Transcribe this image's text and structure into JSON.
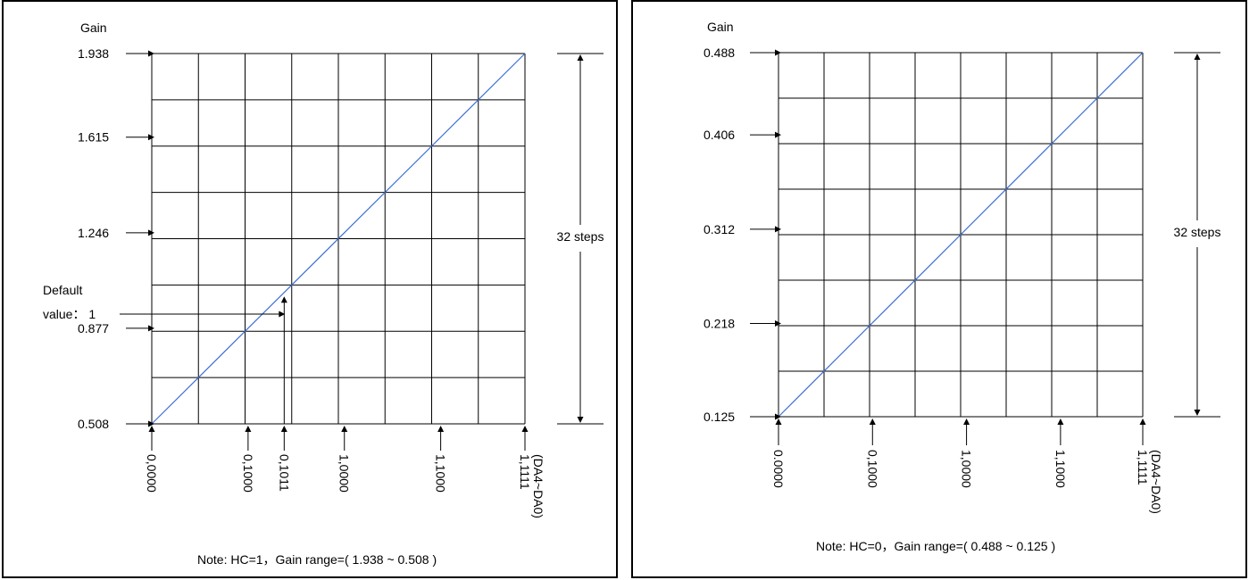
{
  "chart_data": [
    {
      "type": "line",
      "ylabel": "Gain",
      "xlabel": "(DA4~DA0)",
      "x_tick_labels": [
        "0,0000",
        "0,1000",
        "0,1011",
        "1,0000",
        "1,1000",
        "1,1111"
      ],
      "x_tick_steps": [
        0,
        8,
        11,
        16,
        24,
        31
      ],
      "y_tick_labels": [
        "1.938",
        "1.615",
        "1.246",
        "0.877",
        "0.508"
      ],
      "ylim": [
        0.508,
        1.938
      ],
      "xlim": [
        0,
        31
      ],
      "series": [
        {
          "x": [
            0,
            31
          ],
          "y": [
            0.508,
            1.938
          ]
        }
      ],
      "grid": true,
      "steps_label": "32 steps",
      "default_label_line1": "Default",
      "default_label_line2": "value： 1",
      "default_point": {
        "x": 11,
        "y": 1
      },
      "note": "Note: HC=1，Gain range=( 1.938 ~ 0.508 )",
      "line_color": "#3b6fd4"
    },
    {
      "type": "line",
      "ylabel": "Gain",
      "xlabel": "(DA4~DA0)",
      "x_tick_labels": [
        "0.0000",
        "0,1000",
        "1,0000",
        "1,1000",
        "1,1111"
      ],
      "x_tick_steps": [
        0,
        8,
        16,
        24,
        31
      ],
      "y_tick_labels": [
        "0.488",
        "0.406",
        "0.312",
        "0.218",
        "0.125"
      ],
      "ylim": [
        0.125,
        0.488
      ],
      "xlim": [
        0,
        31
      ],
      "series": [
        {
          "x": [
            0,
            31
          ],
          "y": [
            0.125,
            0.488
          ]
        }
      ],
      "grid": true,
      "steps_label": "32 steps",
      "note": "Note: HC=0，Gain range=( 0.488 ~ 0.125 )",
      "line_color": "#3b6fd4"
    }
  ]
}
